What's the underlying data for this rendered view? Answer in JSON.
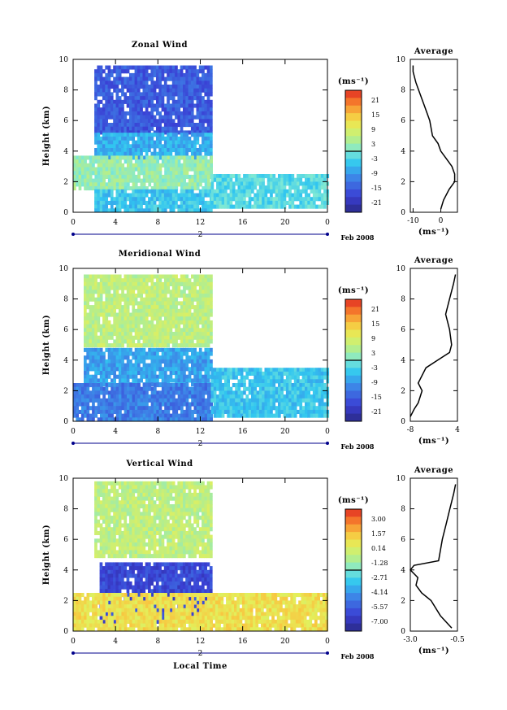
{
  "panels": [
    {
      "title": "Zonal Wind",
      "ylabel": "Height (km)",
      "xticks": [
        "0",
        "4",
        "8",
        "12",
        "16",
        "20",
        "0"
      ],
      "yticks": [
        "0",
        "2",
        "4",
        "6",
        "8",
        "10"
      ],
      "day_label": "2",
      "date_label": "Feb 2008",
      "colorbar": {
        "unit": "(ms⁻¹)",
        "ticks": [
          "21",
          "15",
          "9",
          "3",
          "-3",
          "-9",
          "-15",
          "-21"
        ]
      },
      "avg": {
        "title": "Average",
        "xticks": [
          "-10",
          "0"
        ],
        "yticks": [
          "0",
          "2",
          "4",
          "6",
          "8",
          "10"
        ],
        "xlabel": "(ms⁻¹)",
        "xlim": [
          -11,
          6
        ]
      }
    },
    {
      "title": "Meridional Wind",
      "ylabel": "Height (km)",
      "xticks": [
        "0",
        "4",
        "8",
        "12",
        "16",
        "20",
        "0"
      ],
      "yticks": [
        "0",
        "2",
        "4",
        "6",
        "8",
        "10"
      ],
      "day_label": "2",
      "date_label": "Feb 2008",
      "colorbar": {
        "unit": "(ms⁻¹)",
        "ticks": [
          "21",
          "15",
          "9",
          "3",
          "-3",
          "-9",
          "-15",
          "-21"
        ]
      },
      "avg": {
        "title": "Average",
        "xticks": [
          "-8",
          "4"
        ],
        "yticks": [
          "0",
          "2",
          "4",
          "6",
          "8",
          "10"
        ],
        "xlabel": "(ms⁻¹)",
        "xlim": [
          -8,
          4
        ]
      }
    },
    {
      "title": "Vertical Wind",
      "ylabel": "Height (km)",
      "xticks": [
        "0",
        "4",
        "8",
        "12",
        "16",
        "20",
        "0"
      ],
      "yticks": [
        "0",
        "2",
        "4",
        "6",
        "8",
        "10"
      ],
      "day_label": "2",
      "date_label": "Feb 2008",
      "xlabel": "Local Time",
      "colorbar": {
        "unit": "(ms⁻¹)",
        "ticks": [
          "3.00",
          "1.57",
          "0.14",
          "-1.28",
          "-2.71",
          "-4.14",
          "-5.57",
          "-7.00"
        ]
      },
      "avg": {
        "title": "Average",
        "xticks": [
          "-3.0",
          "-0.5"
        ],
        "yticks": [
          "0",
          "2",
          "4",
          "6",
          "8",
          "10"
        ],
        "xlabel": "(ms⁻¹)",
        "xlim": [
          -3.0,
          -0.5
        ]
      }
    }
  ],
  "chart_data": [
    {
      "type": "heatmap",
      "title": "Zonal Wind",
      "ylabel": "Height (km)",
      "xlim_hours": [
        0,
        24
      ],
      "ylim_km": [
        0,
        10
      ],
      "color_range": [
        -21,
        21
      ],
      "regions": [
        {
          "x": [
            2,
            13
          ],
          "y": [
            5.2,
            9.6
          ],
          "value": -13
        },
        {
          "x": [
            2,
            13
          ],
          "y": [
            3.7,
            5.2
          ],
          "value": -6
        },
        {
          "x": [
            0,
            13
          ],
          "y": [
            1.5,
            3.7
          ],
          "value": 2
        },
        {
          "x": [
            2,
            13
          ],
          "y": [
            0.2,
            1.5
          ],
          "value": -4
        },
        {
          "x": [
            13,
            24
          ],
          "y": [
            0.3,
            2.5
          ],
          "value": -2
        }
      ],
      "average_profile": {
        "x_ms": [
          -10,
          -10,
          -9,
          -8,
          -6,
          -4,
          -3,
          -1,
          0,
          2,
          4,
          5,
          5,
          3,
          1,
          0
        ],
        "y_km": [
          9.6,
          9.2,
          8.5,
          8.0,
          7.0,
          6.0,
          5.0,
          4.5,
          4.0,
          3.5,
          3.0,
          2.5,
          2.0,
          1.5,
          0.8,
          0.2
        ]
      }
    },
    {
      "type": "heatmap",
      "title": "Meridional Wind",
      "ylabel": "Height (km)",
      "xlim_hours": [
        0,
        24
      ],
      "ylim_km": [
        0,
        10
      ],
      "color_range": [
        -21,
        21
      ],
      "regions": [
        {
          "x": [
            1,
            13
          ],
          "y": [
            5.0,
            9.6
          ],
          "value": 5
        },
        {
          "x": [
            1,
            13
          ],
          "y": [
            2.5,
            4.8
          ],
          "value": -7
        },
        {
          "x": [
            0,
            13
          ],
          "y": [
            0.2,
            2.5
          ],
          "value": -10
        },
        {
          "x": [
            13,
            24
          ],
          "y": [
            0.5,
            3.5
          ],
          "value": -4
        }
      ],
      "average_profile": {
        "x_ms": [
          3.5,
          3,
          2,
          1,
          2,
          2.5,
          2,
          -1,
          -4,
          -6,
          -5,
          -6,
          -7,
          -8
        ],
        "y_km": [
          9.6,
          9.0,
          8.0,
          7.0,
          6.0,
          5.0,
          4.5,
          4.0,
          3.5,
          2.5,
          2.0,
          1.2,
          0.8,
          0.3
        ]
      }
    },
    {
      "type": "heatmap",
      "title": "Vertical Wind",
      "ylabel": "Height (km)",
      "xlabel": "Local Time",
      "xlim_hours": [
        0,
        24
      ],
      "ylim_km": [
        0,
        10
      ],
      "color_range": [
        -7.0,
        3.0
      ],
      "regions": [
        {
          "x": [
            2,
            13
          ],
          "y": [
            4.8,
            9.8
          ],
          "value": -0.8
        },
        {
          "x": [
            2.5,
            13
          ],
          "y": [
            0.5,
            4.5
          ],
          "value": -5.5
        },
        {
          "x": [
            0,
            24
          ],
          "y": [
            0,
            2.5
          ],
          "value": 0.4
        }
      ],
      "average_profile": {
        "x_ms": [
          -0.6,
          -0.7,
          -0.9,
          -1.1,
          -1.3,
          -1.5,
          -2.8,
          -3.0,
          -2.6,
          -2.7,
          -2.4,
          -1.9,
          -1.4,
          -0.8
        ],
        "y_km": [
          9.6,
          9.0,
          8.0,
          7.0,
          6.0,
          4.6,
          4.3,
          4.0,
          3.5,
          3.0,
          2.5,
          2.0,
          1.0,
          0.2
        ]
      }
    }
  ]
}
